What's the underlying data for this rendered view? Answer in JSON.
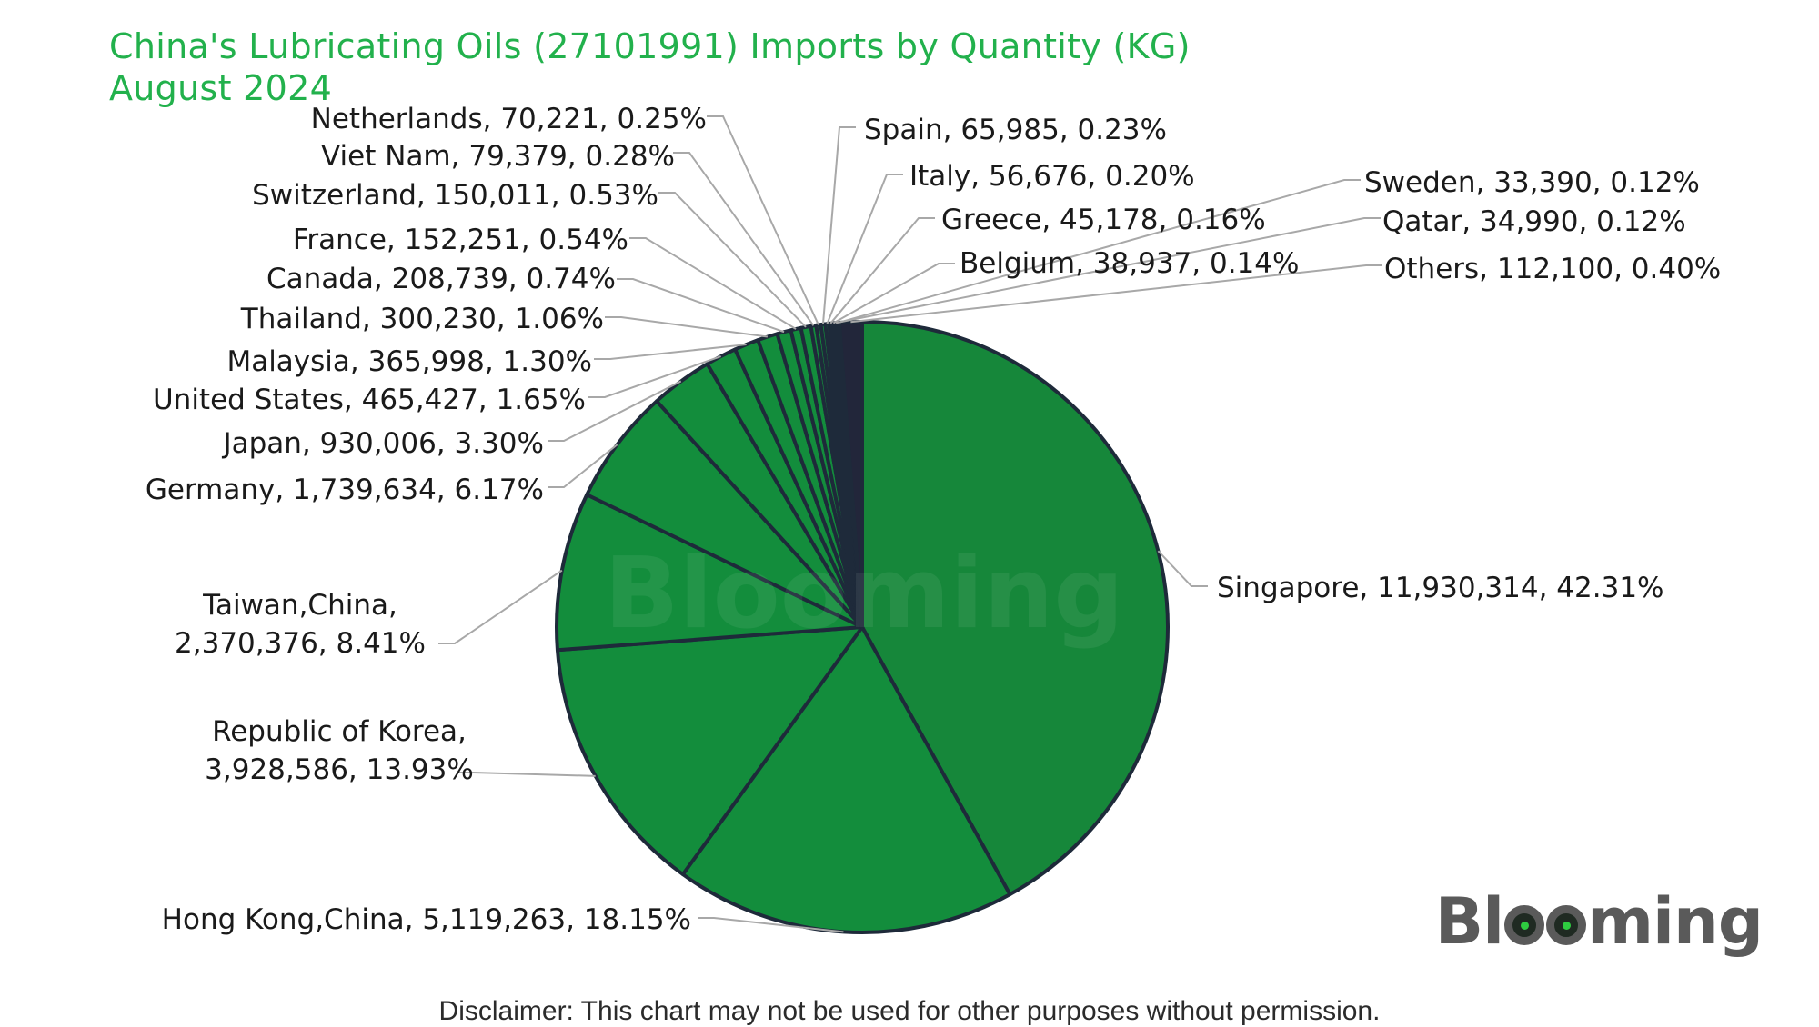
{
  "chart_data": {
    "type": "pie",
    "title": "China's Lubricating Oils (27101991) Imports by Quantity (KG)",
    "subtitle": "August 2024",
    "watermark": "Blooming",
    "colors": {
      "slice": "#138d3c",
      "slice_largest": "#16873a",
      "others": "#22263a",
      "border": "#1e2a3a",
      "title": "#22b14c"
    },
    "slices": [
      {
        "label": "Singapore",
        "value": 11930314,
        "percent": "42.31%",
        "text": "Singapore, 11,930,314, 42.31%"
      },
      {
        "label": "Hong Kong,China",
        "value": 5119263,
        "percent": "18.15%",
        "text": "Hong Kong,China, 5,119,263, 18.15%"
      },
      {
        "label": "Republic of Korea",
        "value": 3928586,
        "percent": "13.93%",
        "text": [
          "Republic of Korea,",
          "3,928,586, 13.93%"
        ]
      },
      {
        "label": "Taiwan,China",
        "value": 2370376,
        "percent": "8.41%",
        "text": [
          "Taiwan,China,",
          "2,370,376, 8.41%"
        ]
      },
      {
        "label": "Germany",
        "value": 1739634,
        "percent": "6.17%",
        "text": "Germany, 1,739,634, 6.17%"
      },
      {
        "label": "Japan",
        "value": 930006,
        "percent": "3.30%",
        "text": "Japan, 930,006, 3.30%"
      },
      {
        "label": "United States",
        "value": 465427,
        "percent": "1.65%",
        "text": "United States, 465,427, 1.65%"
      },
      {
        "label": "Malaysia",
        "value": 365998,
        "percent": "1.30%",
        "text": "Malaysia, 365,998, 1.30%"
      },
      {
        "label": "Thailand",
        "value": 300230,
        "percent": "1.06%",
        "text": "Thailand, 300,230, 1.06%"
      },
      {
        "label": "Canada",
        "value": 208739,
        "percent": "0.74%",
        "text": "Canada, 208,739, 0.74%"
      },
      {
        "label": "France",
        "value": 152251,
        "percent": "0.54%",
        "text": "France, 152,251, 0.54%"
      },
      {
        "label": "Switzerland",
        "value": 150011,
        "percent": "0.53%",
        "text": "Switzerland, 150,011, 0.53%"
      },
      {
        "label": "Viet Nam",
        "value": 79379,
        "percent": "0.28%",
        "text": "Viet Nam, 79,379, 0.28%"
      },
      {
        "label": "Netherlands",
        "value": 70221,
        "percent": "0.25%",
        "text": "Netherlands, 70,221, 0.25%"
      },
      {
        "label": "Spain",
        "value": 65985,
        "percent": "0.23%",
        "text": "Spain, 65,985, 0.23%"
      },
      {
        "label": "Italy",
        "value": 56676,
        "percent": "0.20%",
        "text": "Italy, 56,676, 0.20%"
      },
      {
        "label": "Greece",
        "value": 45178,
        "percent": "0.16%",
        "text": "Greece, 45,178, 0.16%"
      },
      {
        "label": "Belgium",
        "value": 38937,
        "percent": "0.14%",
        "text": "Belgium, 38,937, 0.14%"
      },
      {
        "label": "Qatar",
        "value": 34990,
        "percent": "0.12%",
        "text": "Qatar, 34,990, 0.12%"
      },
      {
        "label": "Sweden",
        "value": 33390,
        "percent": "0.12%",
        "text": "Sweden, 33,390, 0.12%"
      },
      {
        "label": "Others",
        "value": 112100,
        "percent": "0.40%",
        "text": "Others, 112,100, 0.40%"
      }
    ]
  },
  "brand": {
    "logo_text": [
      "Bl",
      "m",
      "ng"
    ]
  },
  "footer": {
    "disclaimer": "Disclaimer: This chart may not be used for other purposes without permission."
  }
}
